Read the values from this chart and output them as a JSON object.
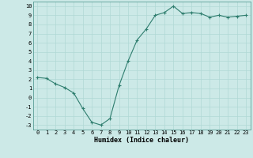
{
  "x": [
    0,
    1,
    2,
    3,
    4,
    5,
    6,
    7,
    8,
    9,
    10,
    11,
    12,
    13,
    14,
    15,
    16,
    17,
    18,
    19,
    20,
    21,
    22,
    23
  ],
  "y": [
    2.2,
    2.1,
    1.5,
    1.1,
    0.5,
    -1.2,
    -2.7,
    -3.0,
    -2.3,
    1.3,
    4.0,
    6.3,
    7.5,
    9.0,
    9.3,
    10.0,
    9.2,
    9.3,
    9.2,
    8.8,
    9.0,
    8.8,
    8.9,
    9.0
  ],
  "line_color": "#2e7d6e",
  "marker": "+",
  "marker_size": 3,
  "background_color": "#cce9e7",
  "grid_color": "#b0d8d5",
  "xlabel": "Humidex (Indice chaleur)",
  "xlim": [
    -0.5,
    23.5
  ],
  "ylim": [
    -3.5,
    10.5
  ],
  "yticks": [
    -3,
    -2,
    -1,
    0,
    1,
    2,
    3,
    4,
    5,
    6,
    7,
    8,
    9,
    10
  ],
  "xticks": [
    0,
    1,
    2,
    3,
    4,
    5,
    6,
    7,
    8,
    9,
    10,
    11,
    12,
    13,
    14,
    15,
    16,
    17,
    18,
    19,
    20,
    21,
    22,
    23
  ],
  "tick_fontsize": 5,
  "xlabel_fontsize": 6,
  "linewidth": 0.8,
  "markeredgewidth": 0.8
}
